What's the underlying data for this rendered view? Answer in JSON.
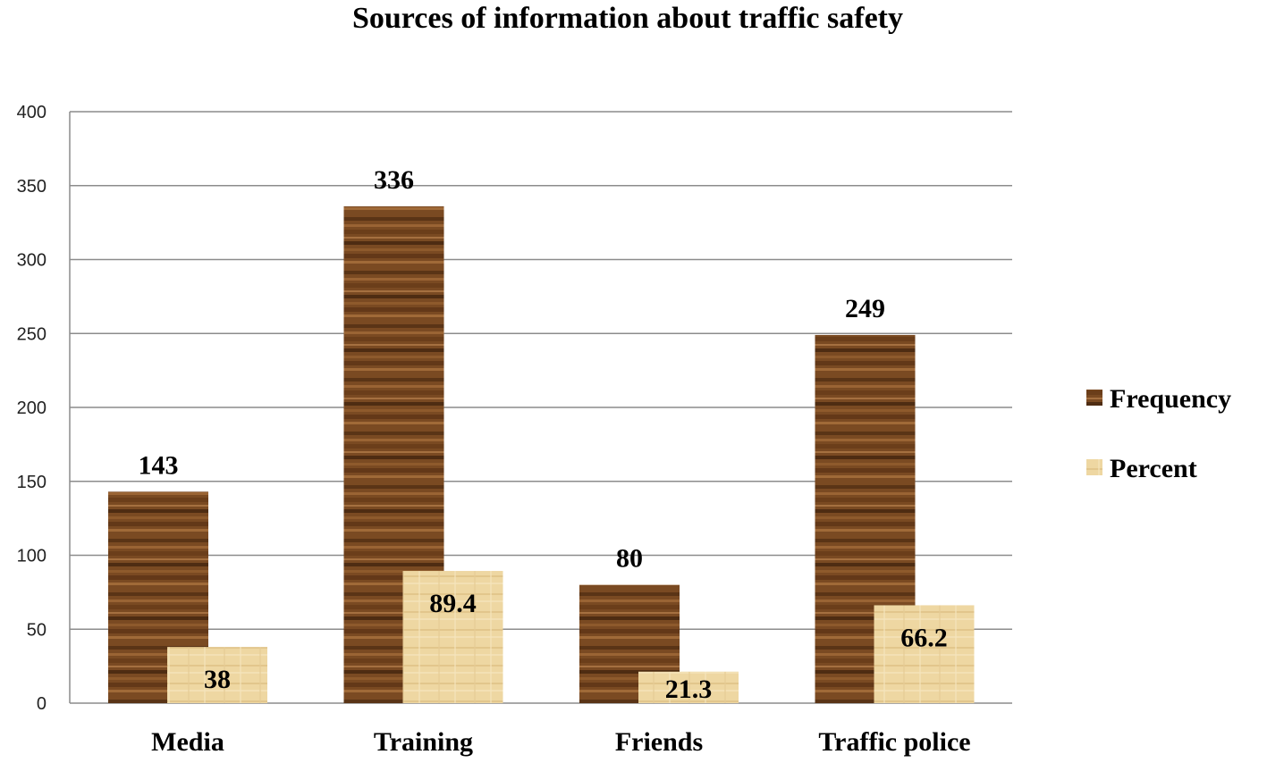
{
  "chart_data": {
    "type": "bar",
    "title": "Sources of information about traffic safety",
    "categories": [
      "Media",
      "Training",
      "Friends",
      "Traffic police"
    ],
    "series": [
      {
        "name": "Frequency",
        "values": [
          143,
          336,
          80,
          249
        ],
        "color": "#7a4a22",
        "labels": [
          "143",
          "336",
          "80",
          "249"
        ]
      },
      {
        "name": "Percent",
        "values": [
          38,
          89.4,
          21.3,
          66.2
        ],
        "color": "#eed7a2",
        "labels": [
          "38",
          "89.4",
          "21.3",
          "66.2"
        ]
      }
    ],
    "ylim": [
      0,
      400
    ],
    "yticks": [
      0,
      50,
      100,
      150,
      200,
      250,
      300,
      350,
      400
    ],
    "grid": true,
    "legend": "right",
    "xlabel": "",
    "ylabel": ""
  }
}
